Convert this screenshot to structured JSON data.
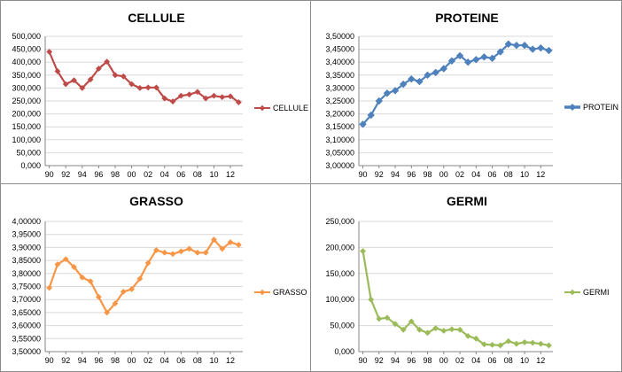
{
  "chart_data": [
    {
      "type": "line",
      "title": "CELLULE",
      "xlabel": "",
      "ylabel": "",
      "x_ticks": [
        "90",
        "92",
        "94",
        "96",
        "98",
        "00",
        "02",
        "04",
        "06",
        "08",
        "10",
        "12"
      ],
      "y_ticks": [
        "500,000",
        "450,000",
        "400,000",
        "350,000",
        "300,000",
        "250,000",
        "200,000",
        "150,000",
        "100,000",
        "50,000",
        "0,000"
      ],
      "ylim": [
        0,
        500
      ],
      "legend": "right",
      "grid": true,
      "color": "#be4b48",
      "marker": "diamond",
      "series": [
        {
          "name": "CELLULE",
          "values": [
            440,
            365,
            315,
            330,
            300,
            333,
            375,
            402,
            350,
            345,
            315,
            300,
            302,
            302,
            260,
            248,
            270,
            275,
            285,
            260,
            270,
            265,
            268,
            245
          ]
        }
      ]
    },
    {
      "type": "line",
      "title": "PROTEINE",
      "xlabel": "",
      "ylabel": "",
      "x_ticks": [
        "90",
        "92",
        "94",
        "96",
        "98",
        "00",
        "02",
        "04",
        "06",
        "08",
        "10",
        "12"
      ],
      "y_ticks": [
        "3,50000",
        "3,45000",
        "3,40000",
        "3,35000",
        "3,30000",
        "3,25000",
        "3,20000",
        "3,15000",
        "3,10000",
        "3,05000",
        "3,00000"
      ],
      "ylim": [
        3.0,
        3.5
      ],
      "legend": "right",
      "grid": true,
      "color": "#4f81bd",
      "marker": "diamond",
      "series": [
        {
          "name": "PROTEIN",
          "values": [
            3.16,
            3.195,
            3.25,
            3.28,
            3.29,
            3.315,
            3.335,
            3.325,
            3.35,
            3.36,
            3.375,
            3.405,
            3.425,
            3.4,
            3.41,
            3.42,
            3.415,
            3.44,
            3.47,
            3.465,
            3.465,
            3.45,
            3.455,
            3.445
          ]
        }
      ]
    },
    {
      "type": "line",
      "title": "GRASSO",
      "xlabel": "",
      "ylabel": "",
      "x_ticks": [
        "90",
        "92",
        "94",
        "96",
        "98",
        "00",
        "02",
        "04",
        "06",
        "08",
        "10",
        "12"
      ],
      "y_ticks": [
        "4,00000",
        "3,95000",
        "3,90000",
        "3,85000",
        "3,80000",
        "3,75000",
        "3,70000",
        "3,65000",
        "3,60000",
        "3,55000",
        "3,50000"
      ],
      "ylim": [
        3.5,
        4.0
      ],
      "legend": "right",
      "grid": true,
      "color": "#f79646",
      "marker": "diamond",
      "series": [
        {
          "name": "GRASSO",
          "values": [
            3.745,
            3.835,
            3.855,
            3.825,
            3.785,
            3.77,
            3.71,
            3.65,
            3.685,
            3.73,
            3.74,
            3.78,
            3.84,
            3.89,
            3.88,
            3.875,
            3.885,
            3.895,
            3.88,
            3.88,
            3.93,
            3.895,
            3.92,
            3.91
          ]
        }
      ]
    },
    {
      "type": "line",
      "title": "GERMI",
      "xlabel": "",
      "ylabel": "",
      "x_ticks": [
        "90",
        "92",
        "94",
        "96",
        "98",
        "00",
        "02",
        "04",
        "06",
        "08",
        "10",
        "12"
      ],
      "y_ticks": [
        "250,000",
        "200,000",
        "150,000",
        "100,000",
        "50,000",
        "0,000"
      ],
      "ylim": [
        0,
        250
      ],
      "legend": "right",
      "grid": true,
      "color": "#9bbb59",
      "marker": "diamond",
      "series": [
        {
          "name": "GERMI",
          "values": [
            193,
            100,
            63,
            65,
            53,
            42,
            58,
            42,
            36,
            45,
            40,
            43,
            42,
            30,
            25,
            14,
            13,
            12,
            20,
            15,
            18,
            17,
            15,
            12
          ]
        }
      ]
    }
  ]
}
